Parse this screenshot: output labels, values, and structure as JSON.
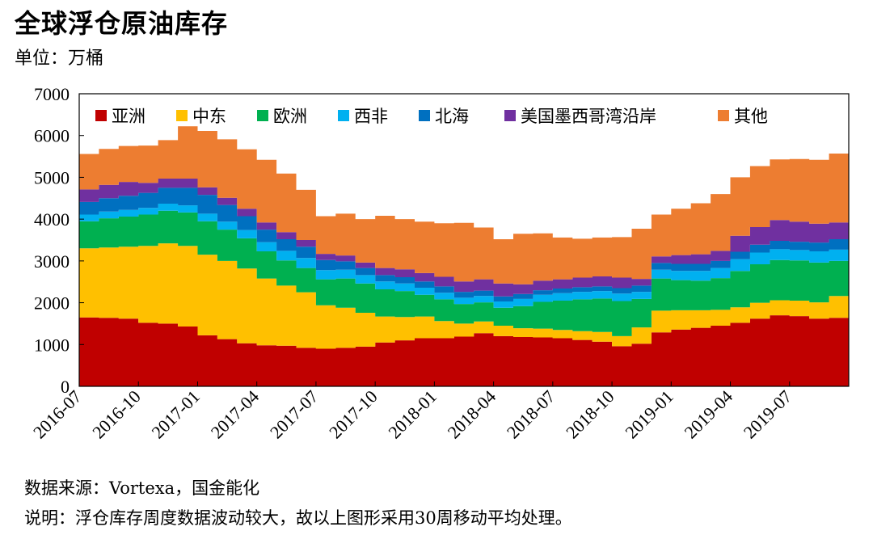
{
  "header": {
    "title": "全球浮仓原油库存",
    "unit": "单位：万桶"
  },
  "footer": {
    "source": "数据来源：Vortexa，国金能化",
    "note": "说明：浮仓库存周度数据波动较大，故以上图形采用30周移动平均处理。"
  },
  "chart_data": {
    "type": "area",
    "stacked": true,
    "ylim": [
      0,
      7000
    ],
    "y_ticks": [
      0,
      1000,
      2000,
      3000,
      4000,
      5000,
      6000,
      7000
    ],
    "x_tick_labels": [
      "2016-07",
      "2016-10",
      "2017-01",
      "2017-04",
      "2017-07",
      "2017-10",
      "2018-01",
      "2018-04",
      "2018-07",
      "2018-10",
      "2019-01",
      "2019-04",
      "2019-07"
    ],
    "legend_position": "top",
    "grid": false,
    "x": [
      "2016-07",
      "2016-08",
      "2016-09",
      "2016-10",
      "2016-11",
      "2016-12",
      "2017-01",
      "2017-02",
      "2017-03",
      "2017-04",
      "2017-05",
      "2017-06",
      "2017-07",
      "2017-08",
      "2017-09",
      "2017-10",
      "2017-11",
      "2017-12",
      "2018-01",
      "2018-02",
      "2018-03",
      "2018-04",
      "2018-05",
      "2018-06",
      "2018-07",
      "2018-08",
      "2018-09",
      "2018-10",
      "2018-11",
      "2018-12",
      "2019-01",
      "2019-02",
      "2019-03",
      "2019-04",
      "2019-05",
      "2019-06",
      "2019-07",
      "2019-08",
      "2019-09"
    ],
    "series": [
      {
        "name": "亚洲",
        "color": "#C00000",
        "values": [
          1650,
          1640,
          1620,
          1520,
          1500,
          1430,
          1220,
          1130,
          1030,
          980,
          970,
          920,
          900,
          920,
          950,
          1050,
          1100,
          1150,
          1150,
          1190,
          1270,
          1200,
          1180,
          1170,
          1150,
          1110,
          1070,
          960,
          1020,
          1290,
          1360,
          1400,
          1450,
          1520,
          1620,
          1700,
          1680,
          1620,
          1640
        ]
      },
      {
        "name": "中东",
        "color": "#FFC000",
        "values": [
          1650,
          1680,
          1720,
          1840,
          1920,
          1930,
          1930,
          1870,
          1790,
          1600,
          1440,
          1330,
          1040,
          960,
          810,
          620,
          560,
          520,
          410,
          310,
          280,
          250,
          210,
          210,
          200,
          210,
          230,
          240,
          390,
          520,
          460,
          420,
          380,
          370,
          380,
          360,
          370,
          390,
          520
        ]
      },
      {
        "name": "欧洲",
        "color": "#00B050",
        "values": [
          650,
          700,
          720,
          750,
          780,
          800,
          800,
          750,
          720,
          650,
          600,
          580,
          620,
          700,
          700,
          650,
          620,
          520,
          520,
          470,
          460,
          430,
          530,
          640,
          700,
          760,
          800,
          840,
          680,
          770,
          720,
          710,
          760,
          870,
          920,
          960,
          960,
          950,
          840
        ]
      },
      {
        "name": "西非",
        "color": "#00B0F0",
        "values": [
          160,
          160,
          160,
          160,
          170,
          170,
          180,
          190,
          200,
          220,
          230,
          240,
          220,
          210,
          200,
          190,
          180,
          170,
          160,
          150,
          150,
          150,
          170,
          170,
          180,
          180,
          180,
          180,
          170,
          210,
          220,
          230,
          240,
          280,
          280,
          260,
          250,
          270,
          270
        ]
      },
      {
        "name": "北海",
        "color": "#0070C0",
        "values": [
          300,
          320,
          340,
          360,
          380,
          420,
          450,
          400,
          330,
          300,
          280,
          270,
          240,
          200,
          170,
          150,
          150,
          150,
          150,
          140,
          130,
          120,
          120,
          110,
          110,
          110,
          110,
          130,
          150,
          160,
          170,
          170,
          170,
          180,
          190,
          200,
          200,
          210,
          250
        ]
      },
      {
        "name": "美国墨西哥湾沿岸",
        "color": "#7030A0",
        "values": [
          300,
          320,
          330,
          240,
          220,
          220,
          180,
          170,
          180,
          170,
          170,
          160,
          150,
          140,
          130,
          170,
          190,
          200,
          230,
          250,
          270,
          310,
          230,
          230,
          220,
          230,
          240,
          250,
          160,
          160,
          210,
          230,
          240,
          380,
          420,
          500,
          480,
          450,
          400
        ]
      },
      {
        "name": "其他",
        "color": "#ED7D31",
        "values": [
          850,
          860,
          860,
          890,
          920,
          1250,
          1350,
          1400,
          1420,
          1500,
          1400,
          1200,
          900,
          1000,
          1040,
          1250,
          1200,
          1230,
          1280,
          1400,
          1240,
          1060,
          1210,
          1130,
          1000,
          930,
          930,
          970,
          1200,
          1000,
          1110,
          1220,
          1360,
          1400,
          1460,
          1450,
          1500,
          1530,
          1650
        ]
      }
    ]
  }
}
